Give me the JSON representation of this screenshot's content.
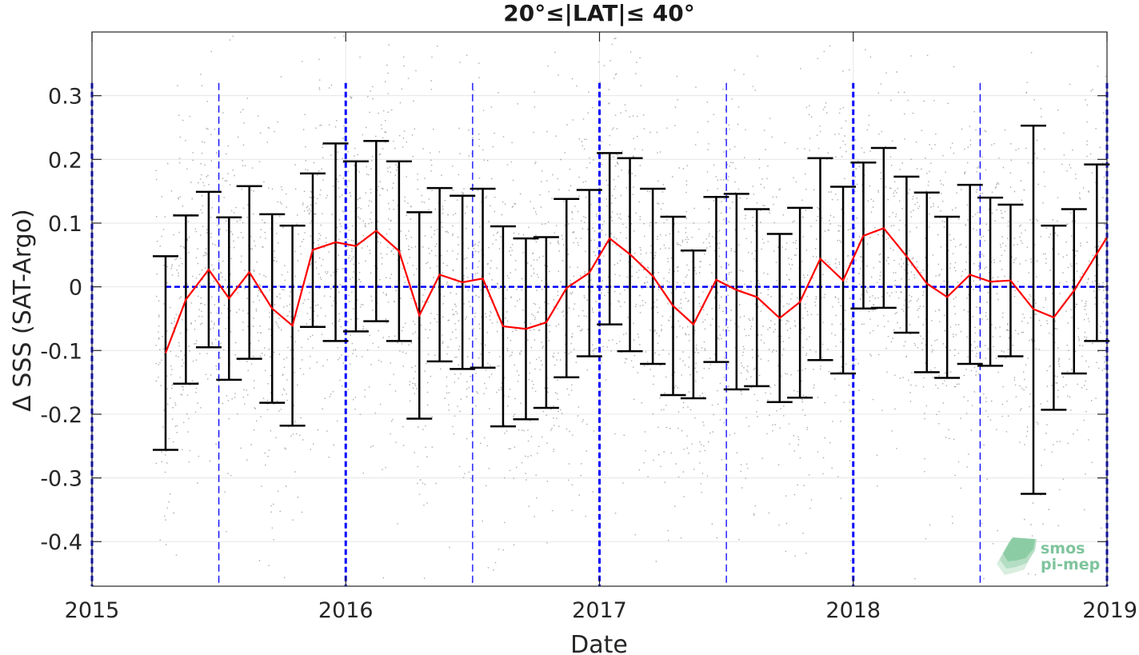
{
  "chart_data": {
    "type": "line",
    "title": "20°≤|LAT|≤ 40°",
    "xlabel": "Date",
    "ylabel": "Δ SSS (SAT-Argo)",
    "xlim": [
      2015.0,
      2019.0
    ],
    "ylim": [
      -0.47,
      0.4
    ],
    "x_ticks": [
      2015,
      2016,
      2017,
      2018,
      2019
    ],
    "x_tick_labels": [
      "2015",
      "2016",
      "2017",
      "2018",
      "2019"
    ],
    "y_ticks": [
      0.3,
      0.2,
      0.1,
      0,
      -0.1,
      -0.2,
      -0.3,
      -0.4
    ],
    "y_tick_labels": [
      "0.3",
      "0.2",
      "0.1",
      "0",
      "-0.1",
      "-0.2",
      "-0.3",
      "-0.4"
    ],
    "grid": true,
    "year_lines": [
      2015.0,
      2016.0,
      2017.0,
      2018.0,
      2019.0
    ],
    "half_year_lines": [
      2015.5,
      2016.5,
      2017.5,
      2018.5
    ],
    "zero_line": 0,
    "colors": {
      "mean_line": "#ff0000",
      "error_bars": "#000000",
      "scatter": "#8c8c8c",
      "reference_lines": "#0000ff",
      "grid": "#e6e6e6"
    },
    "series": [
      {
        "style": "red line with black error bars (±1 std)",
        "x": [
          "2015-04",
          "2015-05",
          "2015-06",
          "2015-07",
          "2015-08",
          "2015-09",
          "2015-10",
          "2015-11",
          "2015-12",
          "2016-01",
          "2016-02",
          "2016-03",
          "2016-04",
          "2016-05",
          "2016-06",
          "2016-07",
          "2016-08",
          "2016-09",
          "2016-10",
          "2016-11",
          "2016-12",
          "2017-01",
          "2017-02",
          "2017-03",
          "2017-04",
          "2017-05",
          "2017-06",
          "2017-07",
          "2017-08",
          "2017-09",
          "2017-10",
          "2017-11",
          "2017-12",
          "2018-01",
          "2018-02",
          "2018-03",
          "2018-04",
          "2018-05",
          "2018-06",
          "2018-07",
          "2018-08",
          "2018-09",
          "2018-10",
          "2018-11",
          "2018-12"
        ],
        "x_decimal": [
          2015.29,
          2015.37,
          2015.46,
          2015.54,
          2015.62,
          2015.71,
          2015.79,
          2015.87,
          2015.96,
          2016.04,
          2016.12,
          2016.21,
          2016.29,
          2016.37,
          2016.46,
          2016.54,
          2016.62,
          2016.71,
          2016.79,
          2016.87,
          2016.96,
          2017.04,
          2017.12,
          2017.21,
          2017.29,
          2017.37,
          2017.46,
          2017.54,
          2017.62,
          2017.71,
          2017.79,
          2017.87,
          2017.96,
          2018.04,
          2018.12,
          2018.21,
          2018.29,
          2018.37,
          2018.46,
          2018.54,
          2018.62,
          2018.71,
          2018.79,
          2018.87,
          2018.96
        ],
        "mean": [
          -0.104,
          -0.02,
          0.027,
          -0.018,
          0.023,
          -0.034,
          -0.061,
          0.058,
          0.07,
          0.064,
          0.088,
          0.056,
          -0.045,
          0.019,
          0.007,
          0.013,
          -0.062,
          -0.066,
          -0.056,
          -0.002,
          0.022,
          0.076,
          0.051,
          0.017,
          -0.03,
          -0.059,
          0.011,
          -0.005,
          -0.016,
          -0.049,
          -0.024,
          0.044,
          0.01,
          0.08,
          0.092,
          0.048,
          0.005,
          -0.016,
          0.019,
          0.008,
          0.01,
          -0.035,
          -0.048,
          -0.006,
          0.052
        ],
        "upper": [
          0.048,
          0.112,
          0.149,
          0.109,
          0.158,
          0.114,
          0.096,
          0.178,
          0.225,
          0.197,
          0.229,
          0.197,
          0.117,
          0.155,
          0.143,
          0.154,
          0.095,
          0.076,
          0.078,
          0.138,
          0.152,
          0.21,
          0.202,
          0.154,
          0.11,
          0.057,
          0.141,
          0.146,
          0.122,
          0.083,
          0.124,
          0.202,
          0.157,
          0.195,
          0.218,
          0.173,
          0.148,
          0.11,
          0.16,
          0.14,
          0.129,
          0.253,
          0.096,
          0.122,
          0.192
        ],
        "lower": [
          -0.256,
          -0.152,
          -0.095,
          -0.146,
          -0.113,
          -0.182,
          -0.218,
          -0.063,
          -0.085,
          -0.07,
          -0.054,
          -0.085,
          -0.207,
          -0.117,
          -0.129,
          -0.127,
          -0.219,
          -0.208,
          -0.19,
          -0.142,
          -0.109,
          -0.059,
          -0.101,
          -0.121,
          -0.17,
          -0.175,
          -0.118,
          -0.161,
          -0.156,
          -0.181,
          -0.174,
          -0.115,
          -0.136,
          -0.034,
          -0.033,
          -0.072,
          -0.134,
          -0.143,
          -0.121,
          -0.124,
          -0.109,
          -0.325,
          -0.193,
          -0.136,
          -0.085
        ]
      }
    ]
  },
  "logo": {
    "line1": "smos",
    "line2": "pi-mep"
  }
}
